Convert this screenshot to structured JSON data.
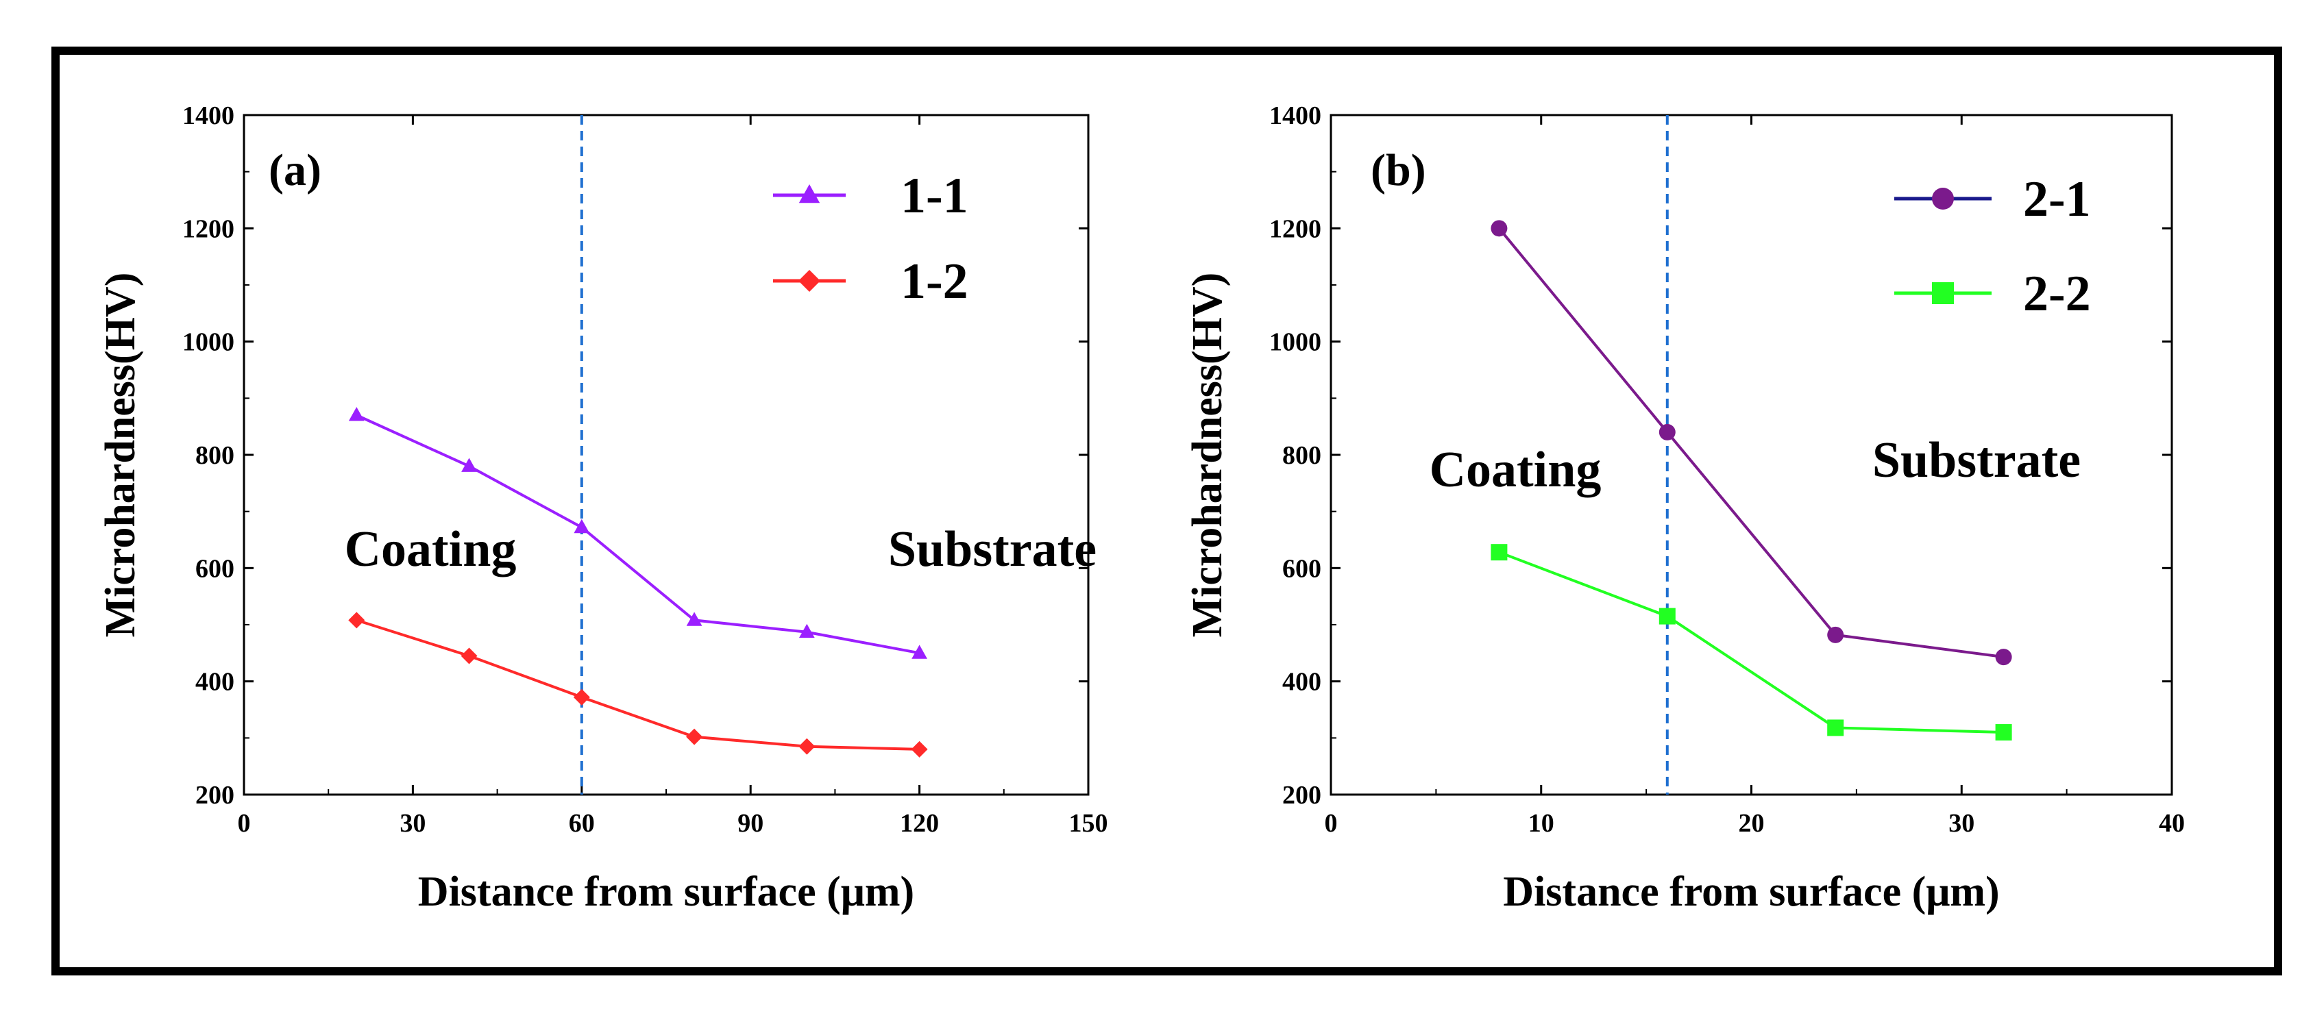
{
  "chart_data": [
    {
      "type": "line",
      "panel_label": "(a)",
      "xlabel": "Distance from surface (μm)",
      "ylabel": "Microhardness(HV)",
      "xlim": [
        0,
        150
      ],
      "ylim": [
        200,
        1400
      ],
      "xticks": [
        0,
        30,
        60,
        90,
        120,
        150
      ],
      "yticks": [
        200,
        400,
        600,
        800,
        1000,
        1200,
        1400
      ],
      "divider_x": 60,
      "regions": {
        "left": "Coating",
        "right": "Substrate"
      },
      "series": [
        {
          "name": "1-1",
          "color": "#9B1FFF",
          "marker": "triangle",
          "x": [
            20,
            40,
            60,
            80,
            100,
            120
          ],
          "values": [
            870,
            780,
            672,
            508,
            487,
            450
          ]
        },
        {
          "name": "1-2",
          "color": "#FF2A2A",
          "marker": "diamond",
          "x": [
            20,
            40,
            60,
            80,
            100,
            120
          ],
          "values": [
            508,
            445,
            372,
            302,
            285,
            280
          ]
        }
      ]
    },
    {
      "type": "line",
      "panel_label": "(b)",
      "xlabel": "Distance from surface (μm)",
      "ylabel": "Microhardness(HV)",
      "xlim": [
        0,
        40
      ],
      "ylim": [
        200,
        1400
      ],
      "xticks": [
        0,
        10,
        20,
        30,
        40
      ],
      "yticks": [
        200,
        400,
        600,
        800,
        1000,
        1200,
        1400
      ],
      "divider_x": 16,
      "regions": {
        "left": "Coating",
        "right": "Substrate"
      },
      "series": [
        {
          "name": "2-1",
          "color": "#7B1A8C",
          "legend_line_color": "#1A1A8C",
          "marker": "circle",
          "x": [
            8,
            16,
            24,
            32
          ],
          "values": [
            1200,
            840,
            482,
            443
          ]
        },
        {
          "name": "2-2",
          "color": "#22FF22",
          "marker": "square",
          "x": [
            8,
            16,
            24,
            32
          ],
          "values": [
            628,
            515,
            318,
            310
          ]
        }
      ]
    }
  ]
}
